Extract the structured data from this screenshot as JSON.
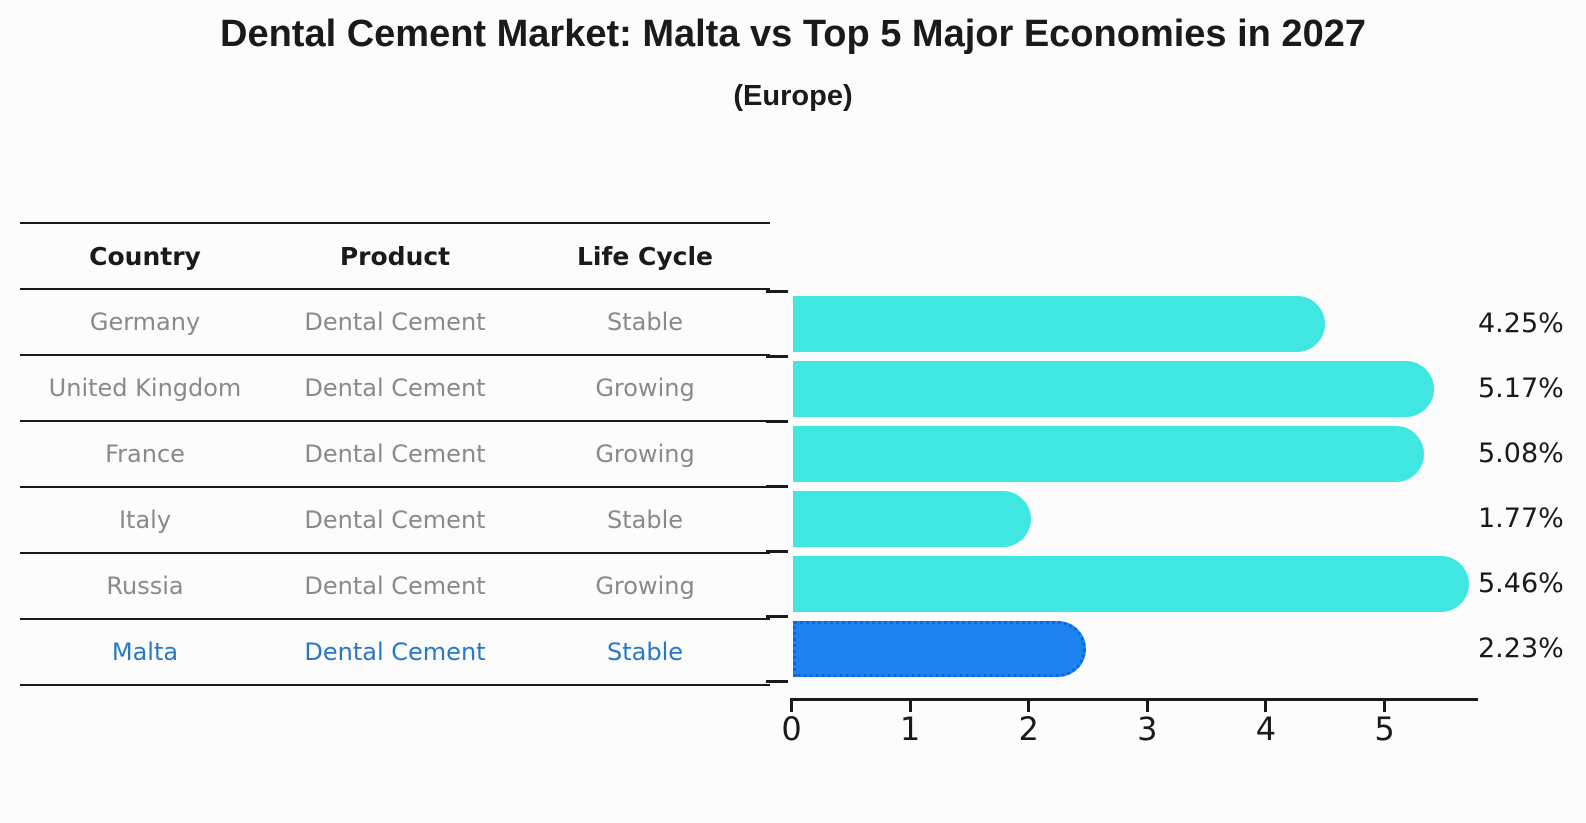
{
  "title": "Dental Cement Market: Malta vs Top 5 Major Economies in 2027",
  "subtitle": "(Europe)",
  "table": {
    "headers": [
      "Country",
      "Product",
      "Life Cycle"
    ],
    "rows": [
      {
        "country": "Germany",
        "product": "Dental Cement",
        "life_cycle": "Stable"
      },
      {
        "country": "United Kingdom",
        "product": "Dental Cement",
        "life_cycle": "Growing"
      },
      {
        "country": "France",
        "product": "Dental Cement",
        "life_cycle": "Growing"
      },
      {
        "country": "Italy",
        "product": "Dental Cement",
        "life_cycle": "Stable"
      },
      {
        "country": "Russia",
        "product": "Dental Cement",
        "life_cycle": "Growing"
      },
      {
        "country": "Malta",
        "product": "Dental Cement",
        "life_cycle": "Stable"
      }
    ],
    "highlighted_country": "Malta"
  },
  "chart_data": {
    "type": "bar",
    "orientation": "horizontal",
    "categories": [
      "Germany",
      "United Kingdom",
      "France",
      "Italy",
      "Russia",
      "Malta"
    ],
    "values": [
      4.25,
      5.17,
      5.08,
      1.77,
      5.46,
      2.23
    ],
    "value_labels": [
      "4.25%",
      "5.17%",
      "5.08%",
      "1.77%",
      "5.46%",
      "2.23%"
    ],
    "x_ticks": [
      "0",
      "1",
      "2",
      "3",
      "4",
      "5"
    ],
    "xlim": [
      0,
      5.8
    ],
    "grid": false,
    "legend": false,
    "highlight_index": 5,
    "bar_color": "#40e7e0",
    "highlight_bar_color": "#1e82f0",
    "highlight_border_color": "#0d66dd"
  },
  "colors": {
    "background": "#fcfcfc",
    "text_primary": "#1a1a1a",
    "text_muted": "#8a8a8a",
    "highlight_text": "#2878c8",
    "line": "#1a1a1a"
  }
}
